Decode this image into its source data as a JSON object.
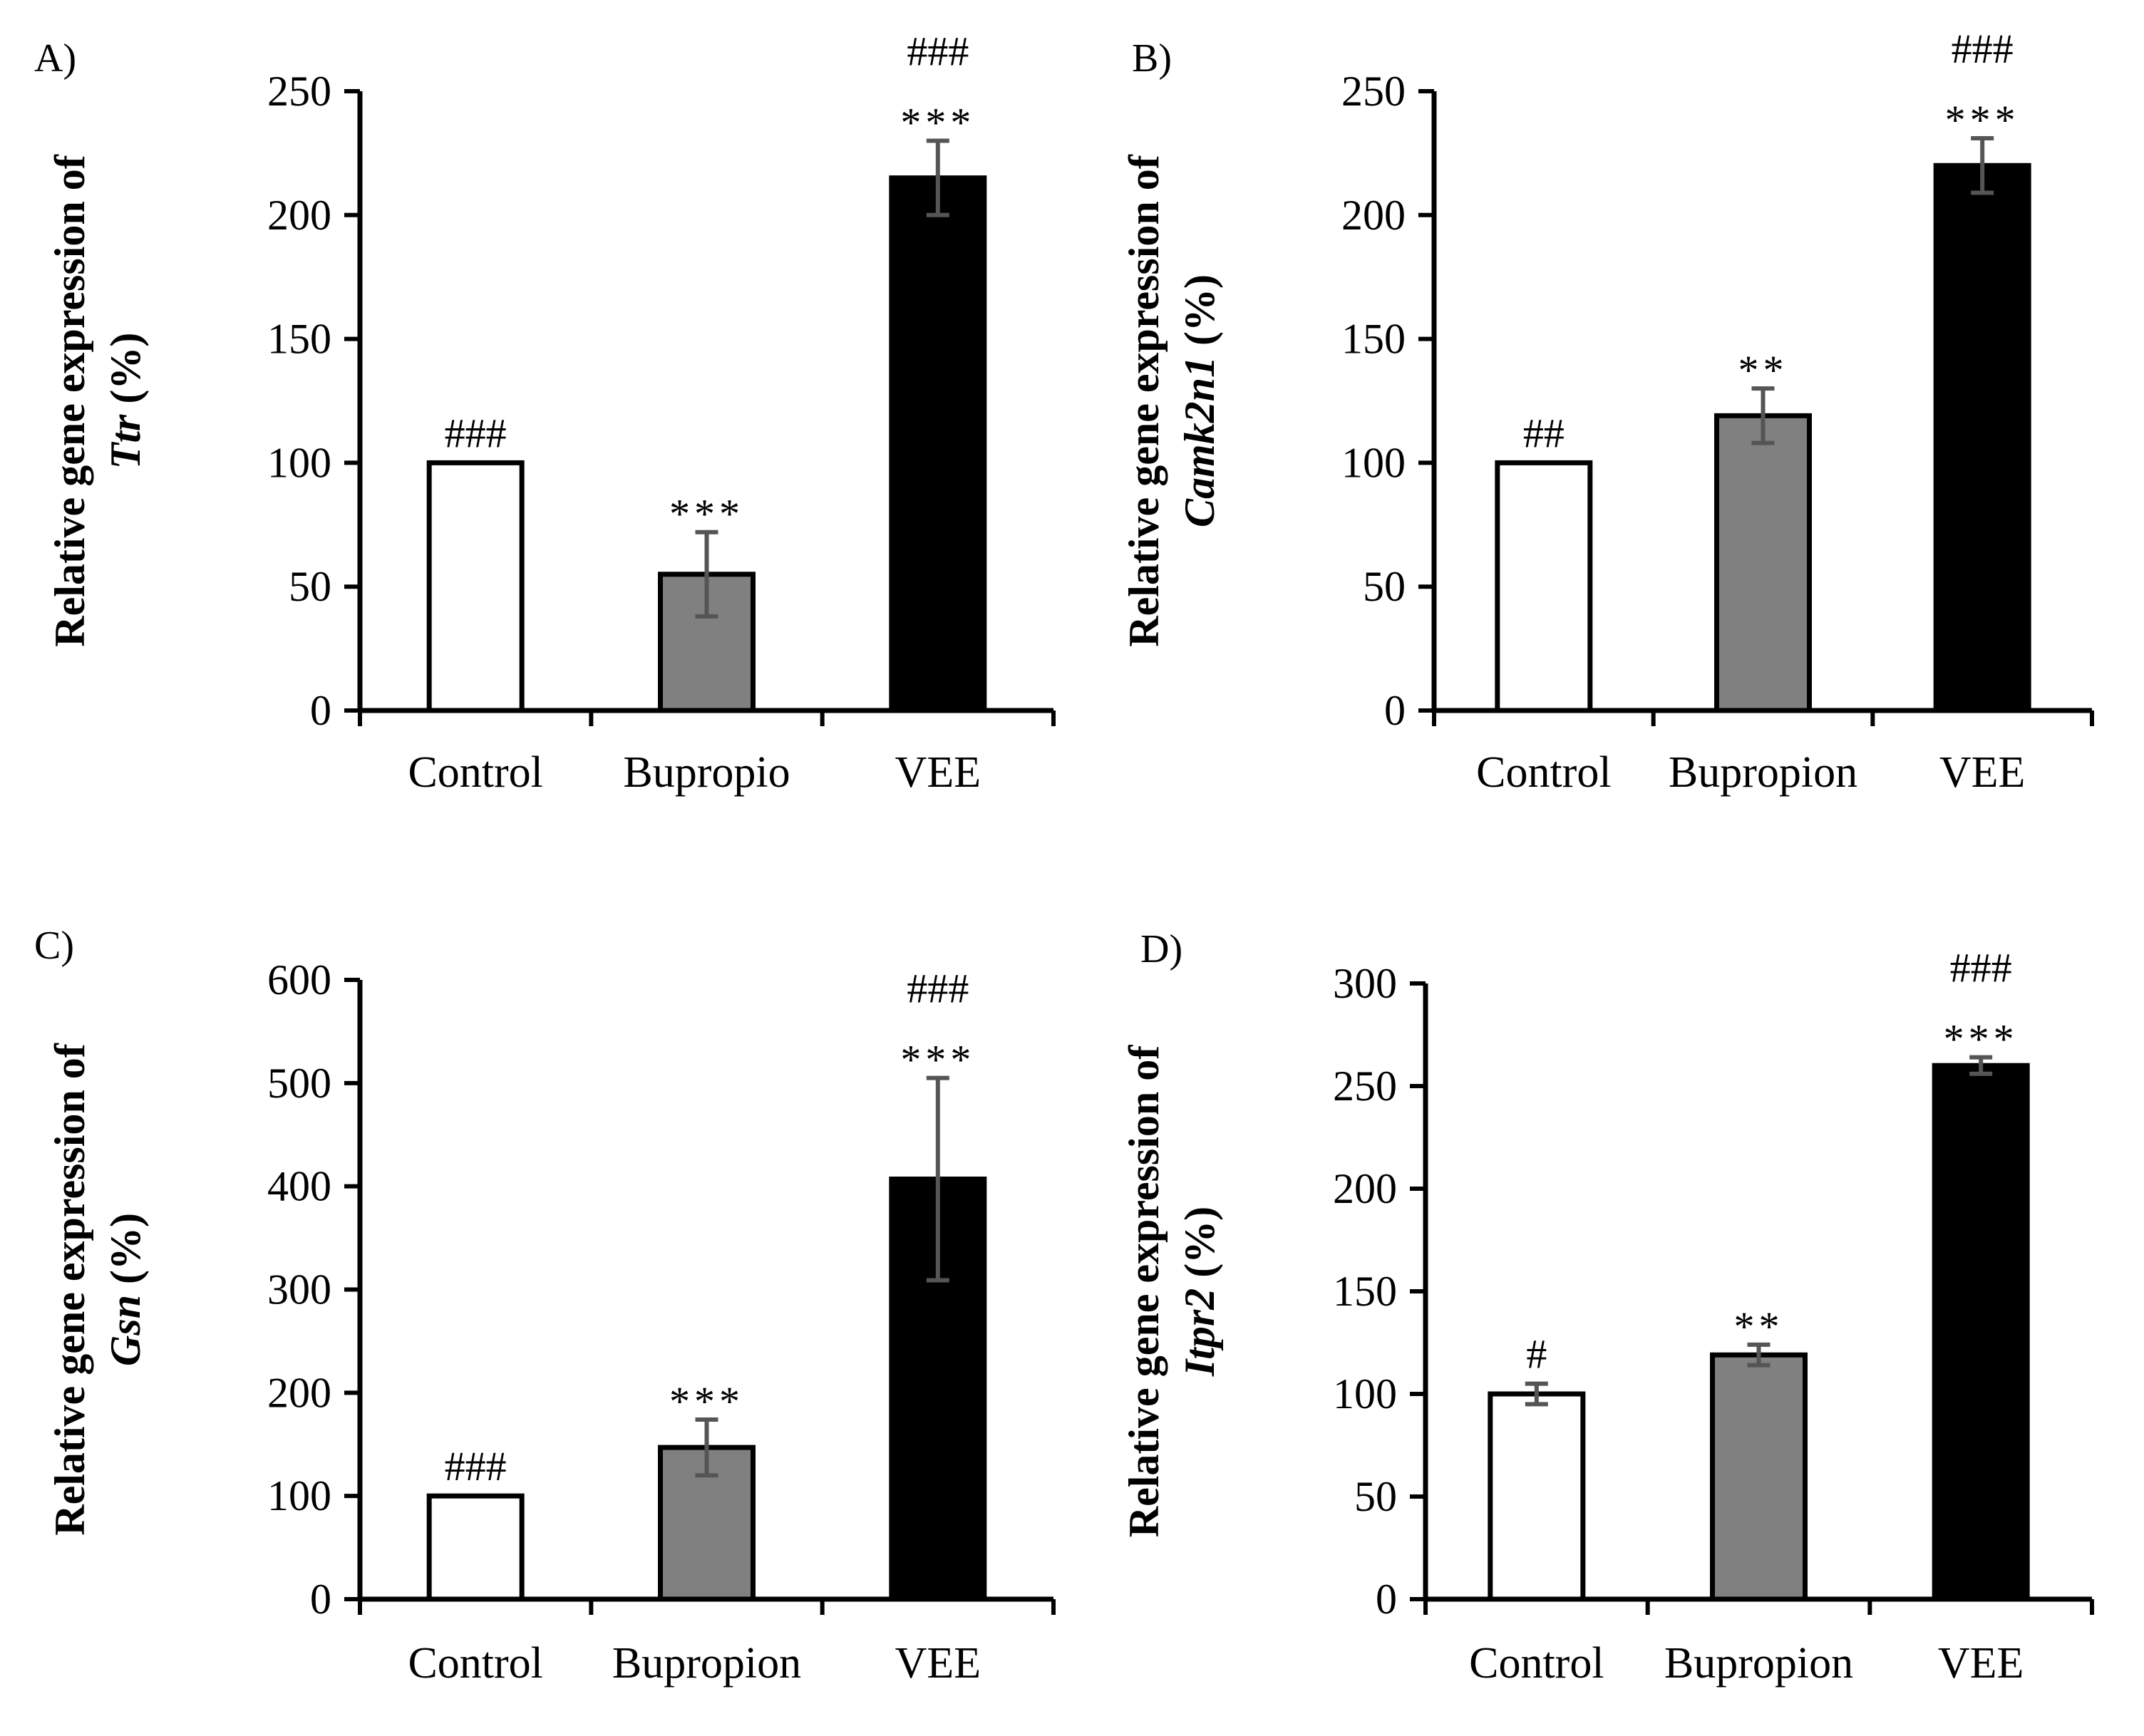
{
  "figure": {
    "panels": [
      "A)",
      "B)",
      "C)",
      "D)"
    ]
  },
  "chart_data": [
    {
      "panel": "A)",
      "type": "bar",
      "ylabel_prefix": "Relative gene expression of",
      "ylabel_gene": "Ttr",
      "ylabel_unit": " (%)",
      "ylim": [
        0,
        250
      ],
      "yticks": [
        0,
        50,
        100,
        150,
        200,
        250
      ],
      "categories": [
        "Control",
        "Bupropio",
        "VEE"
      ],
      "values": [
        100,
        55,
        215
      ],
      "errors": [
        0,
        17,
        15
      ],
      "colors": [
        "#ffffff",
        "#808080",
        "#000000"
      ],
      "annotations_stars": [
        "",
        "***",
        "***"
      ],
      "annotations_hash": [
        "###",
        "",
        "###"
      ]
    },
    {
      "panel": "B)",
      "type": "bar",
      "ylabel_prefix": "Relative gene expression of",
      "ylabel_gene": "Camk2n1",
      "ylabel_unit": " (%)",
      "ylim": [
        0,
        250
      ],
      "yticks": [
        0,
        50,
        100,
        150,
        200,
        250
      ],
      "categories": [
        "Control",
        "Bupropion",
        "VEE"
      ],
      "values": [
        100,
        119,
        220
      ],
      "errors": [
        0,
        11,
        11
      ],
      "colors": [
        "#ffffff",
        "#808080",
        "#000000"
      ],
      "annotations_stars": [
        "",
        "**",
        "***"
      ],
      "annotations_hash": [
        "##",
        "",
        "###"
      ]
    },
    {
      "panel": "C)",
      "type": "bar",
      "ylabel_prefix": "Relative gene expression of",
      "ylabel_gene": "Gsn",
      "ylabel_unit": " (%)",
      "ylim": [
        0,
        600
      ],
      "yticks": [
        0,
        100,
        200,
        300,
        400,
        500,
        600
      ],
      "categories": [
        "Control",
        "Bupropion",
        "VEE"
      ],
      "values": [
        100,
        147,
        407
      ],
      "errors": [
        0,
        27,
        98
      ],
      "colors": [
        "#ffffff",
        "#808080",
        "#000000"
      ],
      "annotations_stars": [
        "",
        "***",
        "***"
      ],
      "annotations_hash": [
        "###",
        "",
        "###"
      ]
    },
    {
      "panel": "D)",
      "type": "bar",
      "ylabel_prefix": "Relative gene expression of",
      "ylabel_gene": "Itpr2",
      "ylabel_unit": " (%)",
      "ylim": [
        0,
        300
      ],
      "yticks": [
        0,
        50,
        100,
        150,
        200,
        250,
        300
      ],
      "categories": [
        "Control",
        "Bupropion",
        "VEE"
      ],
      "values": [
        100,
        119,
        260
      ],
      "errors": [
        5,
        5,
        4
      ],
      "colors": [
        "#ffffff",
        "#808080",
        "#000000"
      ],
      "annotations_stars": [
        "",
        "**",
        "***"
      ],
      "annotations_hash": [
        "#",
        "",
        "###"
      ]
    }
  ]
}
